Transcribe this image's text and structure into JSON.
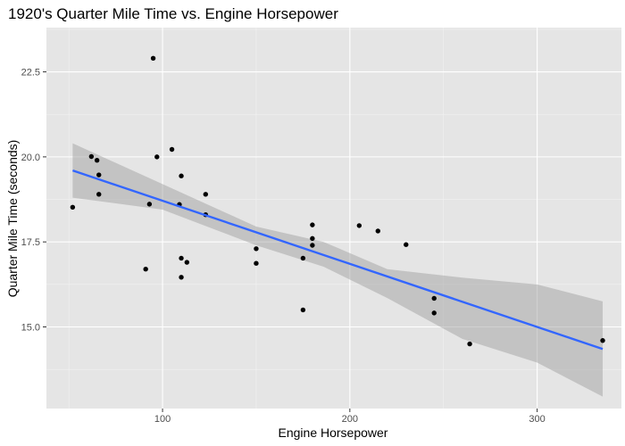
{
  "chart_data": {
    "type": "scatter",
    "title": "1920's Quarter Mile Time vs. Engine Horsepower",
    "xlabel": "Engine Horsepower",
    "ylabel": "Quarter Mile Time (seconds)",
    "xlim": [
      38,
      345
    ],
    "ylim": [
      12.6,
      23.8
    ],
    "xticks": [
      100,
      200,
      300
    ],
    "xtick_labels": [
      "100",
      "200",
      "300"
    ],
    "yticks": [
      15.0,
      17.5,
      20.0,
      22.5
    ],
    "ytick_labels": [
      "15.0",
      "17.5",
      "20.0",
      "22.5"
    ],
    "grid": true,
    "points": [
      {
        "x": 52,
        "y": 18.52
      },
      {
        "x": 62,
        "y": 20.01
      },
      {
        "x": 65,
        "y": 19.9
      },
      {
        "x": 66,
        "y": 19.47
      },
      {
        "x": 66,
        "y": 18.9
      },
      {
        "x": 91,
        "y": 16.7
      },
      {
        "x": 93,
        "y": 18.61
      },
      {
        "x": 95,
        "y": 22.9
      },
      {
        "x": 97,
        "y": 20.0
      },
      {
        "x": 105,
        "y": 20.22
      },
      {
        "x": 109,
        "y": 18.6
      },
      {
        "x": 110,
        "y": 19.44
      },
      {
        "x": 110,
        "y": 17.02
      },
      {
        "x": 110,
        "y": 16.46
      },
      {
        "x": 113,
        "y": 16.9
      },
      {
        "x": 123,
        "y": 18.9
      },
      {
        "x": 123,
        "y": 18.3
      },
      {
        "x": 150,
        "y": 17.3
      },
      {
        "x": 150,
        "y": 16.87
      },
      {
        "x": 175,
        "y": 17.02
      },
      {
        "x": 175,
        "y": 15.5
      },
      {
        "x": 180,
        "y": 18.0
      },
      {
        "x": 180,
        "y": 17.6
      },
      {
        "x": 180,
        "y": 17.4
      },
      {
        "x": 205,
        "y": 17.98
      },
      {
        "x": 215,
        "y": 17.82
      },
      {
        "x": 230,
        "y": 17.42
      },
      {
        "x": 245,
        "y": 15.84
      },
      {
        "x": 245,
        "y": 15.41
      },
      {
        "x": 264,
        "y": 14.5
      },
      {
        "x": 335,
        "y": 14.6
      }
    ],
    "fit_line": {
      "x": [
        52,
        335
      ],
      "y": [
        19.6,
        14.35
      ]
    },
    "confidence_band": {
      "x": [
        52,
        100,
        150,
        186,
        220,
        260,
        300,
        335
      ],
      "lower": [
        18.8,
        18.45,
        17.4,
        16.77,
        15.85,
        14.65,
        13.95,
        12.95
      ],
      "upper": [
        20.4,
        19.2,
        17.95,
        17.5,
        16.7,
        16.45,
        16.25,
        15.75
      ]
    },
    "colors": {
      "panel_background": "#e5e5e5",
      "grid_major": "#ffffff",
      "point": "#000000",
      "fit_line": "#3366ff",
      "band": "#999999"
    }
  }
}
